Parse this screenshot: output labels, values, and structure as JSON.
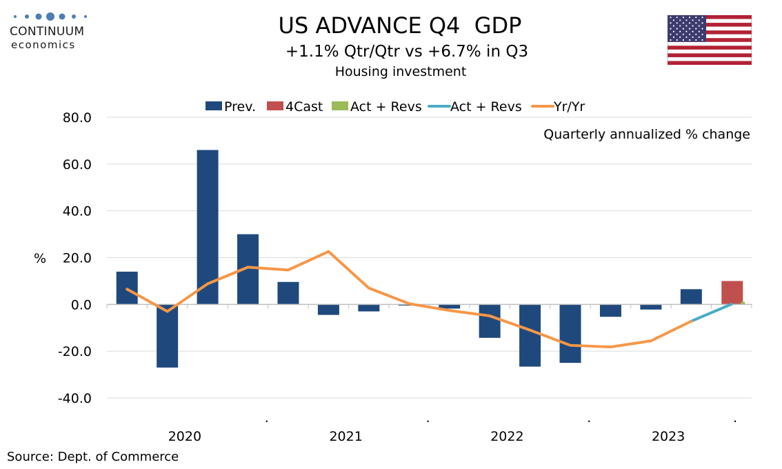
{
  "logo": {
    "name": "CONTINUUM",
    "sub": "economics"
  },
  "header": {
    "title": "US ADVANCE Q4  GDP",
    "subtitle": "+1.1% Qtr/Qtr vs +6.7% in Q3",
    "subtitle2": "Housing investment"
  },
  "footer": {
    "source": "Source: Dept. of Commerce"
  },
  "colors": {
    "prev": "#1f497d",
    "forecast": "#c0504d",
    "act_revs_bar": "#9bbb59",
    "act_revs_line": "#4bacc6",
    "yoy": "#f79646",
    "grid": "#d9d9d9"
  },
  "chart_data": {
    "type": "bar",
    "title": "US ADVANCE Q4  GDP",
    "annotation": "Quarterly annualized % change",
    "ylabel": "%",
    "ylim": [
      -40,
      80
    ],
    "yticks": [
      "80.0",
      "60.0",
      "40.0",
      "20.0",
      "0.0",
      "-20.0",
      "-40.0"
    ],
    "ytick_values": [
      80,
      60,
      40,
      20,
      0,
      -20,
      -40
    ],
    "year_labels": [
      "2020",
      "2021",
      "2022",
      "2023"
    ],
    "year_separator_labels": [
      ".",
      ".",
      "."
    ],
    "quarters": [
      "2020Q1",
      "2020Q2",
      "2020Q3",
      "2020Q4",
      "2021Q1",
      "2021Q2",
      "2021Q3",
      "2021Q4",
      "2022Q1",
      "2022Q2",
      "2022Q3",
      "2022Q4",
      "2023Q1",
      "2023Q2",
      "2023Q3",
      "2023Q4"
    ],
    "legend": [
      "Prev.",
      "4Cast",
      "Act + Revs",
      "Act + Revs",
      "Yr/Yr"
    ],
    "series": [
      {
        "name": "Prev.",
        "kind": "bar",
        "values": [
          14.0,
          -27.0,
          66.0,
          30.0,
          9.6,
          -4.5,
          -3.0,
          -0.5,
          -1.8,
          -14.3,
          -26.6,
          -25.0,
          -5.3,
          -2.2,
          6.5,
          null
        ]
      },
      {
        "name": "4Cast",
        "kind": "bar",
        "values": [
          null,
          null,
          null,
          null,
          null,
          null,
          null,
          null,
          null,
          null,
          null,
          null,
          null,
          null,
          null,
          10.0
        ]
      },
      {
        "name": "Act + Revs",
        "kind": "bar",
        "values": [
          null,
          null,
          null,
          null,
          null,
          null,
          null,
          null,
          null,
          null,
          null,
          null,
          null,
          null,
          null,
          1.1
        ]
      },
      {
        "name": "Act + Revs",
        "kind": "line",
        "values": [
          null,
          null,
          null,
          null,
          null,
          null,
          null,
          null,
          null,
          null,
          null,
          null,
          null,
          null,
          -7.2,
          0.1
        ]
      },
      {
        "name": "Yr/Yr",
        "kind": "line",
        "values": [
          6.5,
          -3.0,
          8.8,
          15.9,
          14.7,
          22.6,
          7.0,
          0.3,
          -2.6,
          -4.9,
          -11.0,
          -17.5,
          -18.2,
          -15.6,
          -7.2,
          null
        ]
      }
    ]
  }
}
